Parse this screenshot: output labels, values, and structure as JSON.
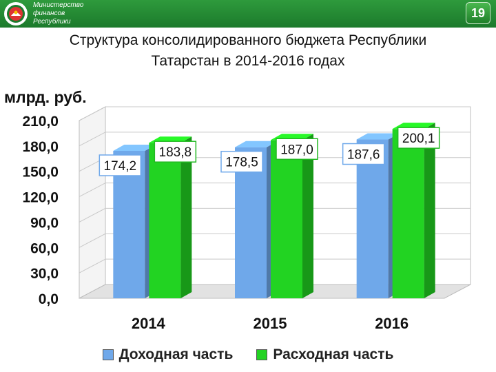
{
  "header": {
    "org_lines": [
      "Министерство",
      "финансов",
      "Республики"
    ],
    "page_number": "19",
    "logo_icon": "tatarstan-emblem-icon"
  },
  "title": {
    "line1": "Структура консолидированного бюджета Республики",
    "line2": "Татарстан в 2014-2016 годах"
  },
  "chart_data": {
    "type": "bar",
    "title": "",
    "xlabel": "",
    "ylabel": "млрд. руб.",
    "categories": [
      "2014",
      "2015",
      "2016"
    ],
    "y_ticks": [
      "0,0",
      "30,0",
      "60,0",
      "90,0",
      "120,0",
      "150,0",
      "180,0",
      "210,0"
    ],
    "ylim": [
      0,
      210
    ],
    "grid": true,
    "legend_position": "bottom",
    "series": [
      {
        "name": "Доходная часть",
        "values": [
          174.2,
          178.5,
          187.6
        ],
        "labels": [
          "174,2",
          "178,5",
          "187,6"
        ],
        "color": "#6fa8ea"
      },
      {
        "name": "Расходная часть",
        "values": [
          183.8,
          187.0,
          200.1
        ],
        "labels": [
          "183,8",
          "187,0",
          "200,1"
        ],
        "color": "#22d322"
      }
    ]
  }
}
